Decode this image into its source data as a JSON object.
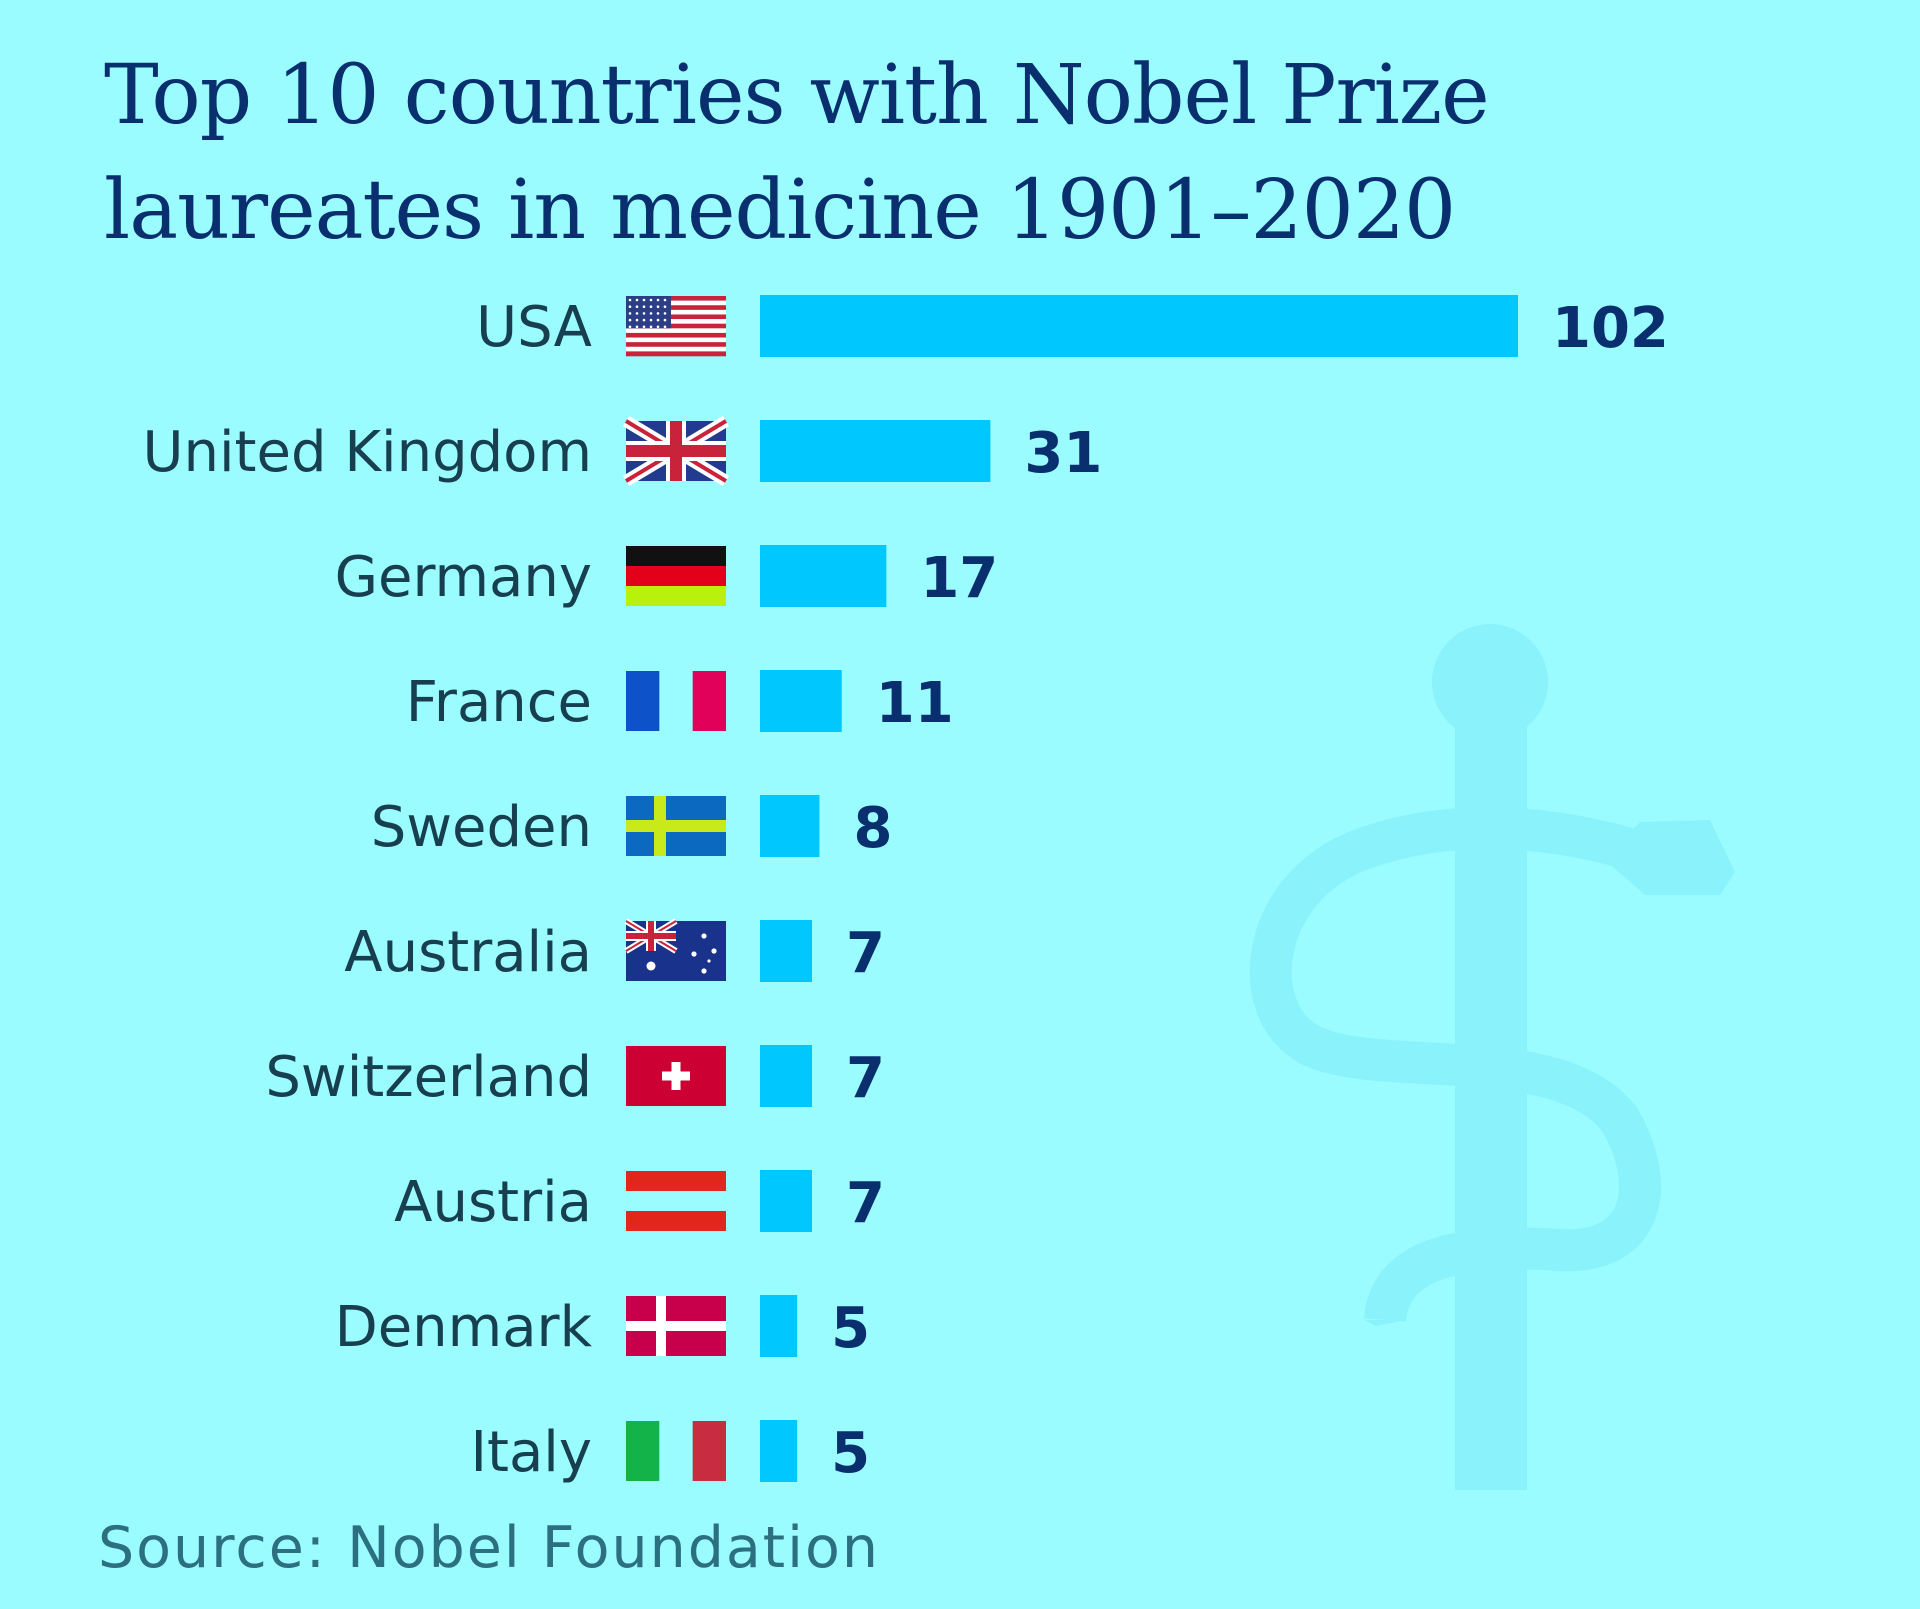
{
  "title": {
    "line1": "Top 10 countries with Nobel Prize",
    "line2": "laureates in medicine 1901–2020"
  },
  "source": "Source: Nobel Foundation",
  "colors": {
    "background": "#9bfcff",
    "bar": "#00c8ff",
    "title": "#0a2f6e",
    "country_label": "#173f4f",
    "value_label": "#0a2f6e",
    "watermark": "#8af2fb"
  },
  "decoration": "staff-of-asclepius-icon",
  "chart_data": {
    "type": "bar",
    "orientation": "horizontal",
    "title": "Top 10 countries with Nobel Prize laureates in medicine 1901–2020",
    "categories": [
      "USA",
      "United Kingdom",
      "Germany",
      "France",
      "Sweden",
      "Australia",
      "Switzerland",
      "Austria",
      "Denmark",
      "Italy"
    ],
    "values": [
      102,
      31,
      17,
      11,
      8,
      7,
      7,
      7,
      5,
      5
    ],
    "flags": [
      "flag-usa-icon",
      "flag-united-kingdom-icon",
      "flag-germany-icon",
      "flag-france-icon",
      "flag-sweden-icon",
      "flag-australia-icon",
      "flag-switzerland-icon",
      "flag-austria-icon",
      "flag-denmark-icon",
      "flag-italy-icon"
    ],
    "xlim": [
      0,
      102
    ],
    "grid": false,
    "legend": "none"
  }
}
